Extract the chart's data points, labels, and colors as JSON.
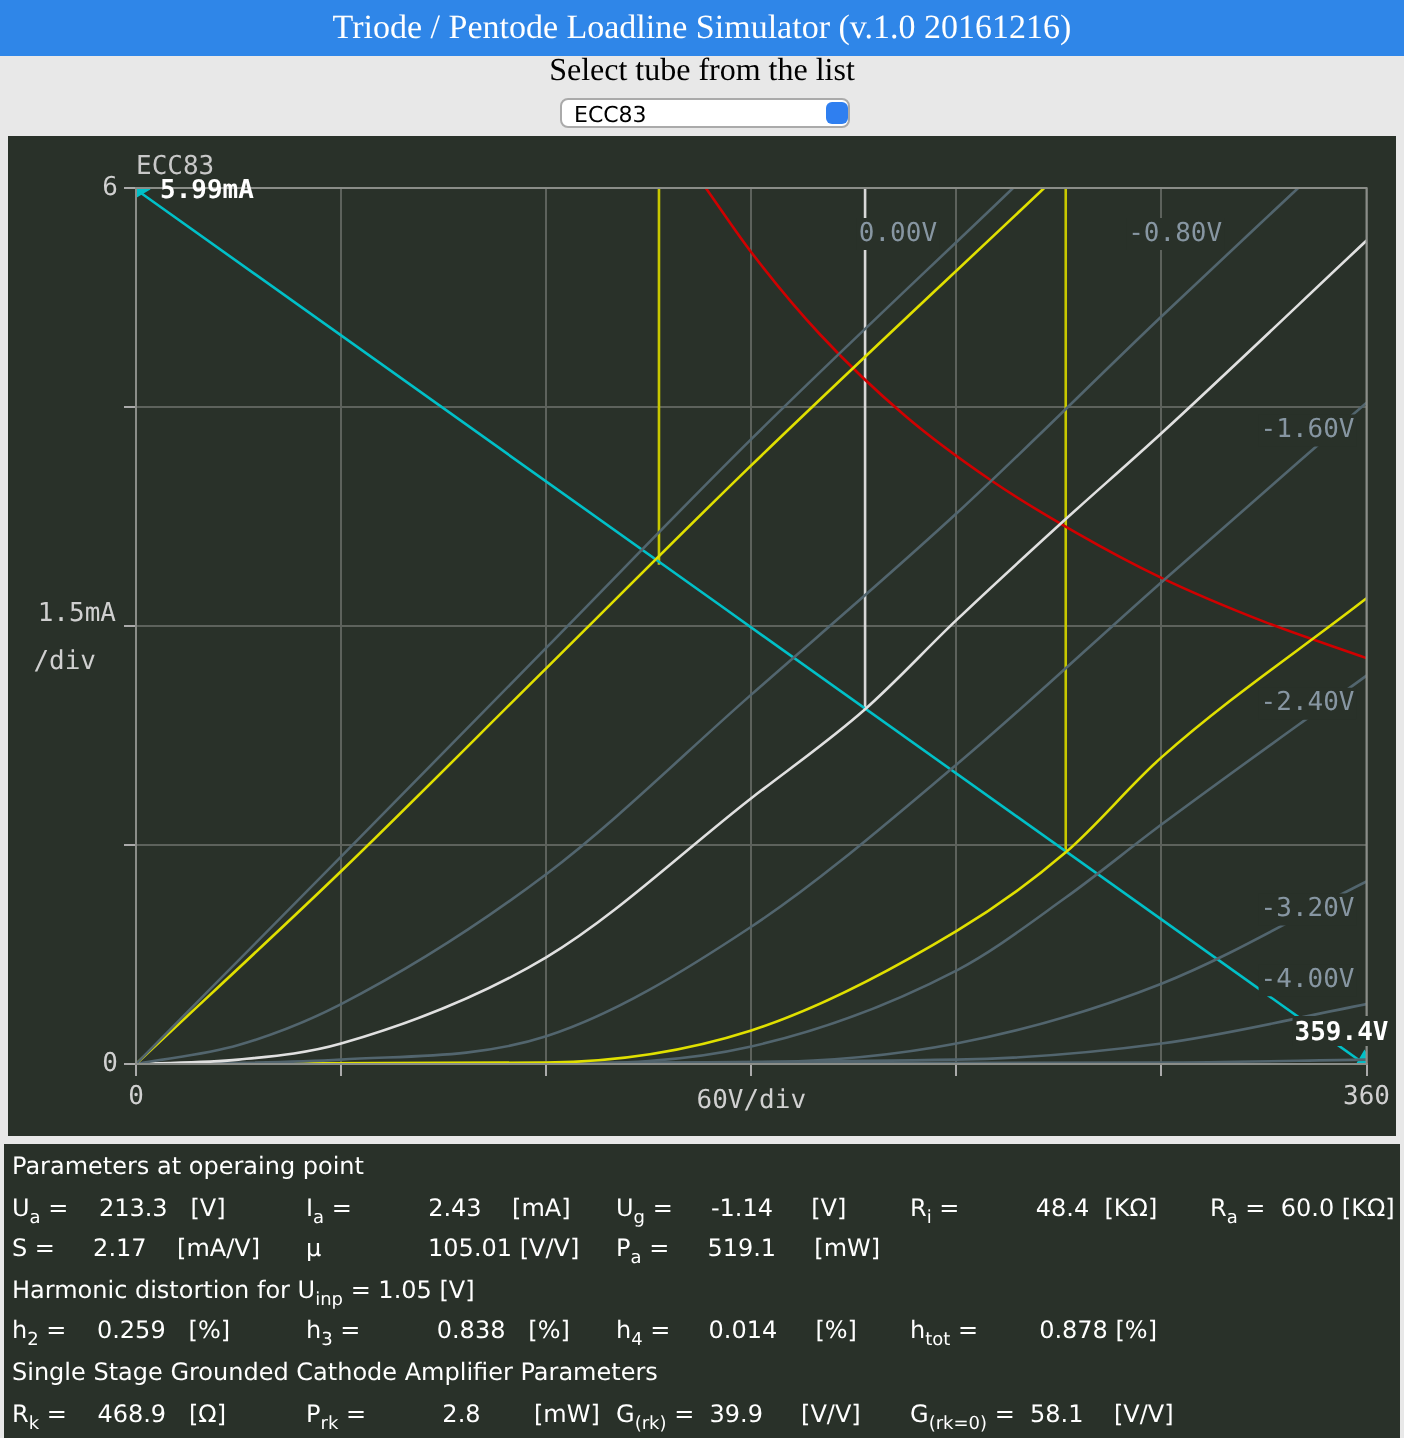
{
  "chart_data": {
    "type": "line",
    "title": "Triode / Pentode Loadline Simulator (v.1.0 20161216)",
    "subtitle": "Select tube from the list",
    "xlabel": "60V/div",
    "ylabel": "1.5mA\n/div",
    "xlim": [
      0,
      360
    ],
    "xticks": [
      0,
      {
        "value": 60,
        "label": null
      },
      {
        "value": 120,
        "label": null
      },
      {
        "value": 180,
        "label": null
      },
      {
        "value": 240,
        "label": null
      },
      {
        "value": 300,
        "label": null
      },
      360
    ],
    "ylim": [
      0,
      6
    ],
    "yticks": [
      0,
      {
        "value": 1.5,
        "label": null
      },
      {
        "value": 3,
        "label": null
      },
      {
        "value": 4.5,
        "label": null
      },
      6
    ],
    "grid": true,
    "legend": false,
    "series": [
      {
        "name": "0.00V",
        "color": "#52656e",
        "x": [
          0,
          60,
          120,
          180,
          256.6
        ],
        "values": [
          0,
          1.42,
          2.85,
          4.28,
          6
        ]
      },
      {
        "color": "#e0e000",
        "x": [
          0,
          60,
          120,
          180,
          265.7
        ],
        "values": [
          0,
          1.32,
          2.71,
          4.1,
          6
        ]
      },
      {
        "name": "-0.80V",
        "color": "#52656e",
        "x": [
          0,
          30,
          60,
          120,
          180,
          240,
          300,
          340
        ],
        "values": [
          0,
          0.13,
          0.41,
          1.3,
          2.53,
          3.77,
          5.12,
          6
        ]
      },
      {
        "color": "#e0e0e0",
        "x": [
          0,
          30,
          60,
          120,
          180,
          213.3,
          240,
          270,
          300,
          360
        ],
        "values": [
          0,
          0.03,
          0.14,
          0.73,
          1.82,
          2.43,
          3.04,
          3.69,
          4.32,
          5.64
        ]
      },
      {
        "name": "-1.60V",
        "color": "#52656e",
        "x": [
          0,
          60,
          120,
          180,
          240,
          300,
          360
        ],
        "values": [
          0,
          0.03,
          0.19,
          0.94,
          2.05,
          3.3,
          4.53
        ]
      },
      {
        "color": "#e0e000",
        "x": [
          0,
          120,
          180,
          240,
          272,
          300,
          360
        ],
        "values": [
          0,
          0.01,
          0.23,
          0.91,
          1.45,
          2.1,
          3.19
        ]
      },
      {
        "name": "-2.40V",
        "color": "#52656e",
        "x": [
          0,
          120,
          180,
          240,
          272,
          300,
          360
        ],
        "values": [
          0,
          0,
          0.12,
          0.64,
          1.14,
          1.64,
          2.66
        ]
      },
      {
        "name": "-3.20V",
        "color": "#52656e",
        "x": [
          0,
          180,
          240,
          300,
          360
        ],
        "values": [
          0,
          0.01,
          0.14,
          0.55,
          1.25
        ]
      },
      {
        "name": "-4.00V",
        "color": "#52656e",
        "x": [
          0,
          240,
          300,
          360
        ],
        "values": [
          0,
          0.03,
          0.14,
          0.41
        ]
      },
      {
        "color": "#52656e",
        "x": [
          0,
          300,
          360
        ],
        "values": [
          0,
          0.01,
          0.03
        ]
      },
      {
        "color": "#d00000",
        "x": [
          166.7,
          180,
          200,
          225,
          250,
          275,
          300,
          330,
          360
        ],
        "values": [
          6,
          5.56,
          5,
          4.44,
          4,
          3.64,
          3.33,
          3.03,
          2.78
        ]
      },
      {
        "color": "#00c0c8",
        "x": [
          0,
          359.4
        ],
        "values": [
          5.99,
          0
        ],
        "marker": "triangle"
      },
      {
        "color": "#d8d8d8",
        "x": [
          213.3,
          213.3
        ],
        "values": [
          2.43,
          6
        ]
      },
      {
        "color": "#c8c800",
        "x": [
          153,
          153
        ],
        "values": [
          3.42,
          6
        ]
      },
      {
        "color": "#c8c800",
        "x": [
          272,
          272
        ],
        "values": [
          1.45,
          6
        ]
      }
    ],
    "annotations": [
      "ECC83",
      "ECC83",
      {
        "text": "5.99mA",
        "x": 0,
        "y": 5.99
      },
      {
        "text": "359.4V",
        "x": 359.4,
        "y": 0
      },
      "Parameters at operaing point",
      "U$_{a}$ =    213.3   [V]",
      "I$_{a}$ =          2.43    [mA]",
      "U$_{g}$ =     -1.14     [V]",
      "R$_{i}$ =          48.4  [KΩ]",
      "R$_{a}$ =  60.0 [KΩ]",
      "S =     2.17    [mA/V]",
      "μ              105.01 [V/V]",
      "P$_{a}$ =     519.1     [mW]",
      "Harmonic distortion for U$_{inp}$ = 1.05 [V]",
      "h$_{2}$ =    0.259   [%]",
      "h$_{3}$ =          0.838   [%]",
      "h$_{4}$ =     0.014     [%]",
      "h$_{tot}$ =        0.878 [%]",
      "Single Stage Grounded Cathode Amplifier Parameters",
      "R$_{k}$ =    468.9   [Ω]",
      "P$_{rk}$ =          2.8       [mW]",
      "G$_{(rk)}$ =  39.9     [V/V]",
      "G$_{(rk=0)}$ =  58.1    [V/V]"
    ]
  }
}
